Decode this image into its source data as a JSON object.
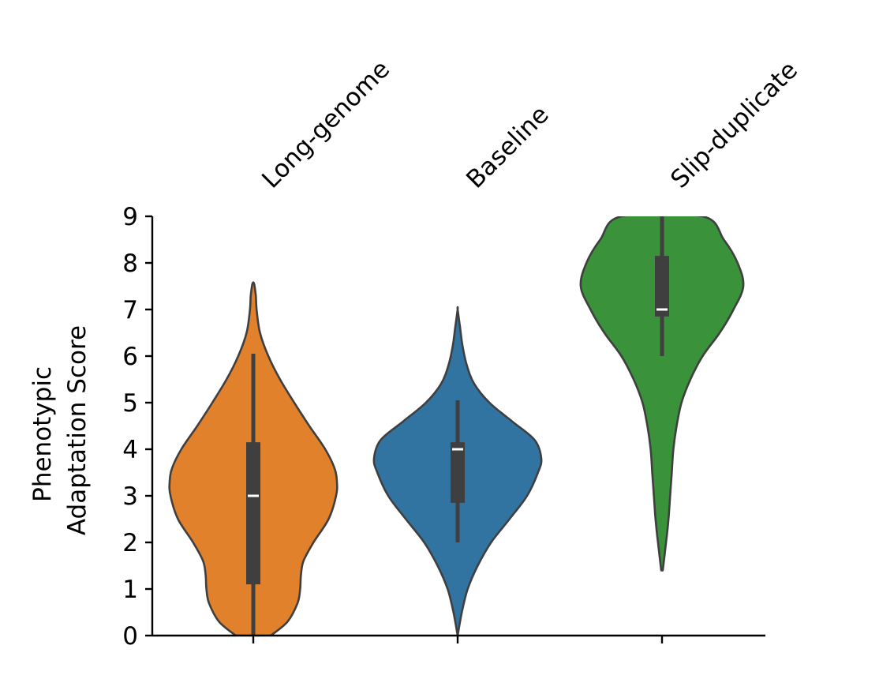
{
  "chart_data": {
    "type": "violin",
    "title": "",
    "xlabel": "",
    "ylabel_lines": [
      "Phenotypic",
      "Adaptation Score"
    ],
    "ylim": [
      0,
      9
    ],
    "yticks": [
      "0",
      "1",
      "2",
      "3",
      "4",
      "5",
      "6",
      "7",
      "8",
      "9"
    ],
    "grid": false,
    "legend": "none",
    "categories": [
      "Long-genome",
      "Baseline",
      "Slip-duplicate"
    ],
    "series": [
      {
        "category": "Long-genome",
        "color": "#e1812c",
        "min": 0,
        "q1": 1.1,
        "median": 3.0,
        "q3": 4.15,
        "max": 6.05,
        "density_range": [
          0.0,
          7.55
        ],
        "density_profile": [
          [
            0.0,
            0.21
          ],
          [
            0.3,
            0.41
          ],
          [
            0.7,
            0.53
          ],
          [
            1.0,
            0.56
          ],
          [
            1.3,
            0.57
          ],
          [
            1.6,
            0.6
          ],
          [
            2.0,
            0.72
          ],
          [
            2.5,
            0.9
          ],
          [
            3.0,
            0.99
          ],
          [
            3.3,
            1.0
          ],
          [
            3.6,
            0.97
          ],
          [
            4.0,
            0.86
          ],
          [
            4.5,
            0.67
          ],
          [
            5.0,
            0.49
          ],
          [
            5.5,
            0.32
          ],
          [
            6.0,
            0.18
          ],
          [
            6.5,
            0.08
          ],
          [
            7.0,
            0.04
          ],
          [
            7.3,
            0.03
          ],
          [
            7.55,
            0.01
          ]
        ]
      },
      {
        "category": "Baseline",
        "color": "#3274a1",
        "min": 2.0,
        "q1": 2.85,
        "median": 4.0,
        "q3": 4.15,
        "max": 5.05,
        "density_range": [
          0.0,
          7.0
        ],
        "density_profile": [
          [
            0.0,
            0.0
          ],
          [
            0.5,
            0.05
          ],
          [
            1.0,
            0.12
          ],
          [
            1.5,
            0.24
          ],
          [
            2.0,
            0.4
          ],
          [
            2.5,
            0.62
          ],
          [
            3.0,
            0.83
          ],
          [
            3.5,
            0.96
          ],
          [
            3.8,
            1.0
          ],
          [
            4.2,
            0.92
          ],
          [
            4.6,
            0.65
          ],
          [
            5.0,
            0.38
          ],
          [
            5.4,
            0.2
          ],
          [
            5.8,
            0.11
          ],
          [
            6.2,
            0.06
          ],
          [
            6.6,
            0.03
          ],
          [
            7.0,
            0.0
          ]
        ]
      },
      {
        "category": "Slip-duplicate",
        "color": "#3a923a",
        "min": 6.0,
        "q1": 6.85,
        "median": 7.0,
        "q3": 8.15,
        "max": 9.0,
        "density_range": [
          1.4,
          9.0
        ],
        "density_profile": [
          [
            1.4,
            0.01
          ],
          [
            2.0,
            0.05
          ],
          [
            2.5,
            0.08
          ],
          [
            3.0,
            0.1
          ],
          [
            3.5,
            0.12
          ],
          [
            4.0,
            0.14
          ],
          [
            4.5,
            0.18
          ],
          [
            5.0,
            0.24
          ],
          [
            5.5,
            0.35
          ],
          [
            6.0,
            0.5
          ],
          [
            6.5,
            0.71
          ],
          [
            7.0,
            0.88
          ],
          [
            7.5,
            1.0
          ],
          [
            8.0,
            0.93
          ],
          [
            8.5,
            0.76
          ],
          [
            9.0,
            0.5
          ]
        ]
      }
    ]
  }
}
